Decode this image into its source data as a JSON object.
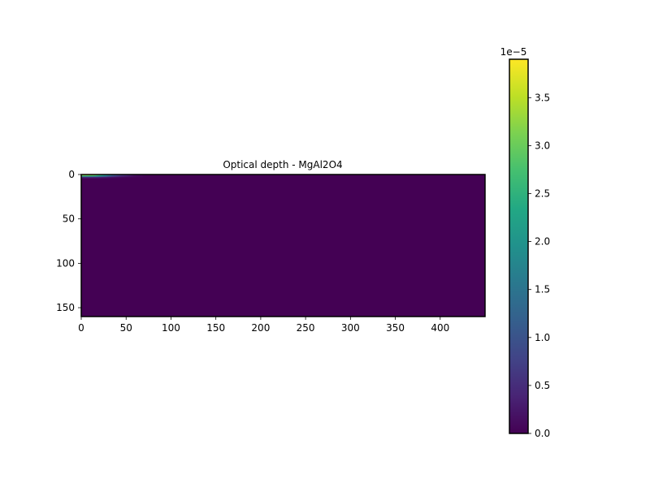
{
  "chart_data": {
    "type": "heatmap",
    "title": "Optical depth - MgAl2O4",
    "xlabel": "",
    "ylabel": "",
    "x_range": [
      0,
      450
    ],
    "y_range": [
      0,
      160
    ],
    "y_inverted": true,
    "x_ticks": [
      "0",
      "50",
      "100",
      "150",
      "200",
      "250",
      "300",
      "350",
      "400"
    ],
    "y_ticks": [
      "0",
      "50",
      "100",
      "150"
    ],
    "grid": false,
    "colormap": "viridis",
    "colorbar": {
      "range": [
        0,
        3.9
      ],
      "ticks": [
        "0.0",
        "0.5",
        "1.0",
        "1.5",
        "2.0",
        "2.5",
        "3.0",
        "3.5"
      ],
      "multiplier": "1e−5"
    },
    "data": {
      "description_values": "optical depth values shown in units of 1e-5",
      "background_value": 0.0,
      "hotspot": {
        "row_range": [
          0,
          3
        ],
        "column_profile": [
          {
            "x": 0,
            "value": 3.9
          },
          {
            "x": 15,
            "value": 3.6
          },
          {
            "x": 25,
            "value": 2.6
          },
          {
            "x": 35,
            "value": 1.4
          },
          {
            "x": 45,
            "value": 0.7
          },
          {
            "x": 60,
            "value": 0.2
          },
          {
            "x": 75,
            "value": 0.0
          }
        ],
        "row_decay": [
          {
            "y": 0,
            "factor": 1.0
          },
          {
            "y": 1,
            "factor": 0.9
          },
          {
            "y": 2,
            "factor": 0.55
          },
          {
            "y": 3,
            "factor": 0.15
          },
          {
            "y": 4,
            "factor": 0.0
          }
        ]
      }
    }
  }
}
